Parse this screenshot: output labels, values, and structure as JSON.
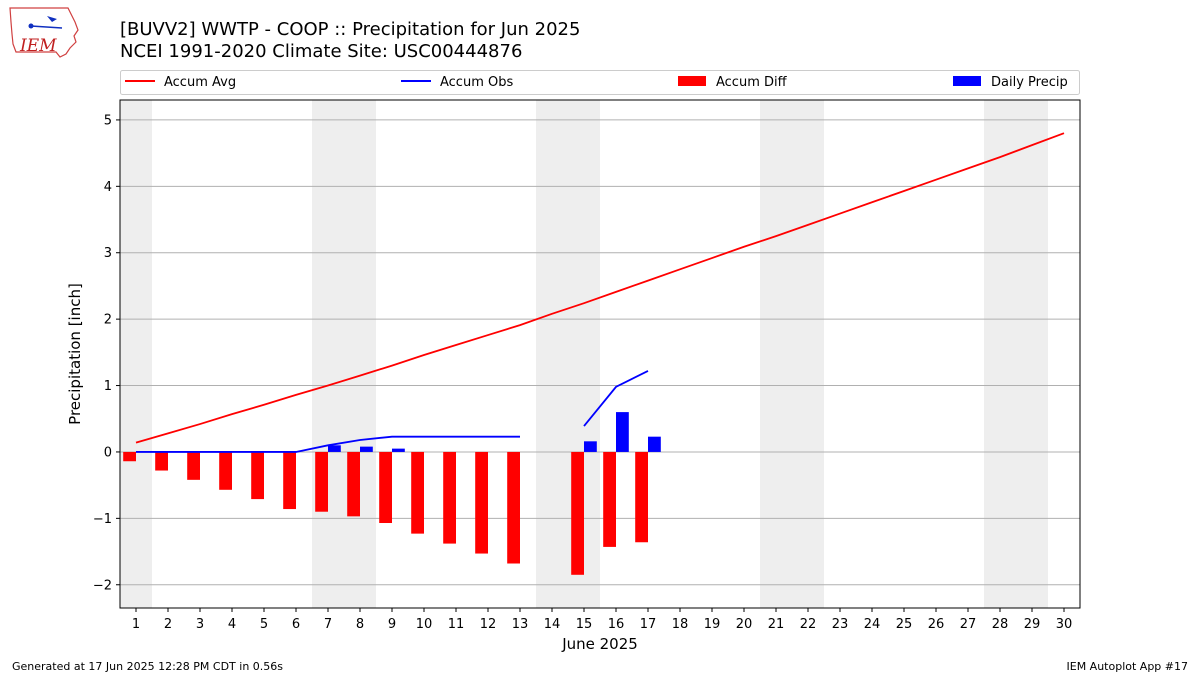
{
  "header": {
    "title_line1": "[BUVV2] WWTP - COOP :: Precipitation for Jun 2025",
    "title_line2": "NCEI 1991-2020 Climate Site: USC00444876"
  },
  "logo": {
    "text": "IEM"
  },
  "footer": {
    "left": "Generated at 17 Jun 2025 12:28 PM CDT in 0.56s",
    "right": "IEM Autoplot App #17"
  },
  "colors": {
    "accum_avg": "#ff0000",
    "accum_obs": "#0000ff",
    "accum_diff": "#ff0000",
    "daily_precip": "#0000ff",
    "weekend_shade": "#eeeeee",
    "grid": "#b0b0b0"
  },
  "chart_data": {
    "type": "bar",
    "xlabel": "June 2025",
    "ylabel": "Precipitation [inch]",
    "xlim": [
      0.5,
      30.5
    ],
    "ylim": [
      -2.35,
      5.3
    ],
    "yticks": [
      -2,
      -1,
      0,
      1,
      2,
      3,
      4,
      5
    ],
    "ytick_labels": [
      "−2",
      "−1",
      "0",
      "1",
      "2",
      "3",
      "4",
      "5"
    ],
    "x": [
      1,
      2,
      3,
      4,
      5,
      6,
      7,
      8,
      9,
      10,
      11,
      12,
      13,
      14,
      15,
      16,
      17,
      18,
      19,
      20,
      21,
      22,
      23,
      24,
      25,
      26,
      27,
      28,
      29,
      30
    ],
    "xtick_labels": [
      "1",
      "2",
      "3",
      "4",
      "5",
      "6",
      "7",
      "8",
      "9",
      "10",
      "11",
      "12",
      "13",
      "14",
      "15",
      "16",
      "17",
      "18",
      "19",
      "20",
      "21",
      "22",
      "23",
      "24",
      "25",
      "26",
      "27",
      "28",
      "29",
      "30"
    ],
    "grid": true,
    "legend_placement": "top",
    "weekend_spans": [
      [
        0.5,
        1.5
      ],
      [
        6.5,
        8.5
      ],
      [
        13.5,
        15.5
      ],
      [
        20.5,
        22.5
      ],
      [
        27.5,
        29.5
      ]
    ],
    "legend": [
      "Accum Avg",
      "Accum Obs",
      "Accum Diff",
      "Daily Precip"
    ],
    "series": [
      {
        "name": "Accum Avg",
        "type": "line",
        "x": [
          1,
          2,
          3,
          4,
          5,
          6,
          7,
          8,
          9,
          10,
          11,
          12,
          13,
          14,
          15,
          16,
          17,
          18,
          19,
          20,
          21,
          22,
          23,
          24,
          25,
          26,
          27,
          28,
          29,
          30
        ],
        "values": [
          0.14,
          0.28,
          0.42,
          0.57,
          0.71,
          0.86,
          1.0,
          1.15,
          1.3,
          1.46,
          1.61,
          1.76,
          1.91,
          2.08,
          2.24,
          2.41,
          2.58,
          2.75,
          2.92,
          3.09,
          3.25,
          3.42,
          3.59,
          3.76,
          3.93,
          4.1,
          4.27,
          4.44,
          4.62,
          4.8
        ]
      },
      {
        "name": "Accum Obs",
        "type": "line",
        "segments": [
          {
            "x": [
              1,
              2,
              3,
              4,
              5,
              6,
              7,
              8,
              9,
              10,
              11,
              12,
              13
            ],
            "values": [
              0,
              0,
              0,
              0,
              0,
              0,
              0.1,
              0.18,
              0.23,
              0.23,
              0.23,
              0.23,
              0.23
            ]
          },
          {
            "x": [
              15,
              16,
              17
            ],
            "values": [
              0.39,
              0.98,
              1.22
            ]
          }
        ]
      },
      {
        "name": "Accum Diff",
        "type": "bar",
        "x": [
          1,
          2,
          3,
          4,
          5,
          6,
          7,
          8,
          9,
          10,
          11,
          12,
          13,
          15,
          16,
          17
        ],
        "values": [
          -0.14,
          -0.28,
          -0.42,
          -0.57,
          -0.71,
          -0.86,
          -0.9,
          -0.97,
          -1.07,
          -1.23,
          -1.38,
          -1.53,
          -1.68,
          -1.85,
          -1.43,
          -1.36
        ]
      },
      {
        "name": "Daily Precip",
        "type": "bar",
        "x": [
          7,
          8,
          9,
          15,
          16,
          17
        ],
        "values": [
          0.1,
          0.08,
          0.05,
          0.16,
          0.6,
          0.23
        ]
      }
    ]
  }
}
